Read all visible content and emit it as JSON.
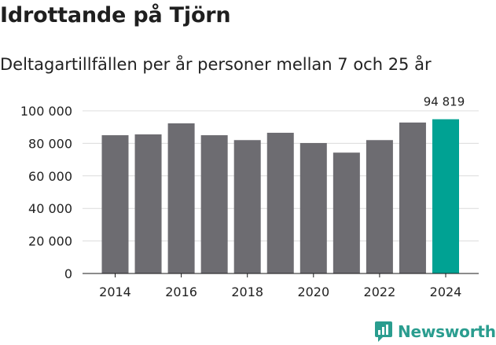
{
  "chart_data": {
    "type": "bar",
    "title": "Idrottande på Tjörn",
    "subtitle": "Deltagartillfällen per år personer mellan 7 och 25 år",
    "xlabel": "",
    "ylabel": "",
    "categories": [
      "2014",
      "2015",
      "2016",
      "2017",
      "2018",
      "2019",
      "2020",
      "2021",
      "2022",
      "2023",
      "2024"
    ],
    "values": [
      85000,
      85500,
      92300,
      85000,
      82000,
      86500,
      80200,
      74300,
      82000,
      92800,
      94819
    ],
    "ylim": [
      0,
      100000
    ],
    "yticks": [
      0,
      20000,
      40000,
      60000,
      80000,
      100000
    ],
    "ytick_labels": [
      "0",
      "20 000",
      "40 000",
      "60 000",
      "80 000",
      "100 000"
    ],
    "xtick_labels": [
      "2014",
      "2016",
      "2018",
      "2020",
      "2022",
      "2024"
    ],
    "highlight_index": 10,
    "highlight_label": "94 819",
    "grid": true,
    "colors": {
      "bar": "#6d6c71",
      "highlight": "#00a293",
      "grid": "#dcdcdc",
      "axis": "#1a1a1a",
      "text": "#222222"
    }
  },
  "brand": {
    "name": "Newsworthy",
    "icon": "newsworthy-logo-icon",
    "color": "#2a9d8f"
  }
}
